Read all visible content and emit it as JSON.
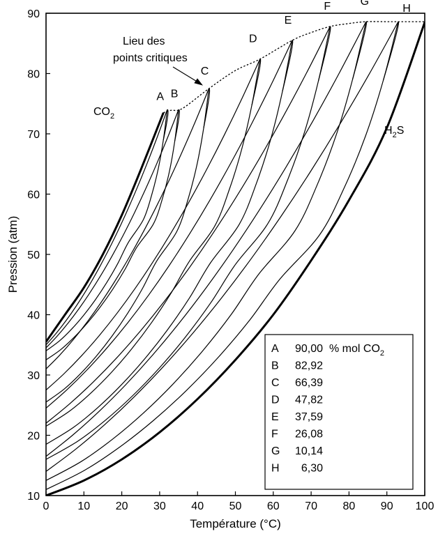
{
  "chart_data": {
    "type": "line",
    "title": "",
    "xlabel": "Température (°C)",
    "ylabel": "Pression (atm)",
    "xlim": [
      0,
      100
    ],
    "ylim": [
      10,
      90
    ],
    "x_ticks": [
      0,
      10,
      20,
      30,
      40,
      50,
      60,
      70,
      80,
      90,
      100
    ],
    "y_ticks": [
      10,
      20,
      30,
      40,
      50,
      60,
      70,
      80,
      90
    ],
    "grid": false,
    "annotations": {
      "critical_locus_line1": "Lieu des",
      "critical_locus_line2": "points critiques",
      "co2_base": "CO",
      "co2_sub": "2",
      "h2s_h": "H",
      "h2s_sub": "2",
      "h2s_s": "S"
    },
    "pure_curves": [
      {
        "name": "CO2",
        "x": [
          0,
          5,
          10,
          15,
          20,
          25,
          31
        ],
        "y": [
          35.5,
          40,
          44.5,
          50,
          56.5,
          64,
          73.5
        ]
      },
      {
        "name": "H2S",
        "x": [
          0,
          10,
          20,
          30,
          40,
          50,
          60,
          70,
          80,
          90,
          100
        ],
        "y": [
          10,
          12.5,
          16,
          20.5,
          26,
          32.5,
          40,
          49,
          59,
          71,
          88.5
        ]
      }
    ],
    "critical_locus": {
      "x": [
        31,
        33,
        36,
        43,
        50,
        56.5,
        65,
        70,
        75,
        80,
        84.5,
        90,
        93,
        100
      ],
      "y": [
        73.5,
        73.9,
        74.2,
        77.5,
        80.5,
        82.4,
        85.5,
        86.8,
        87.8,
        88.3,
        88.6,
        88.6,
        88.6,
        88.6
      ]
    },
    "envelopes": [
      {
        "label": "A",
        "critical_point": [
          32,
          74
        ],
        "bubble_start_pressure": 35,
        "dew_start_pressure": 34
      },
      {
        "label": "B",
        "critical_point": [
          35,
          74
        ],
        "bubble_start_pressure": 34.5,
        "dew_start_pressure": 32.5
      },
      {
        "label": "C",
        "critical_point": [
          43,
          77.5
        ],
        "bubble_start_pressure": 31,
        "dew_start_pressure": 25.5
      },
      {
        "label": "D",
        "critical_point": [
          56.5,
          82.4
        ],
        "bubble_start_pressure": 27.5,
        "dew_start_pressure": 21.5
      },
      {
        "label": "E",
        "critical_point": [
          65,
          85.5
        ],
        "bubble_start_pressure": 24.5,
        "dew_start_pressure": 18.5
      },
      {
        "label": "F",
        "critical_point": [
          75,
          87.8
        ],
        "bubble_start_pressure": 22,
        "dew_start_pressure": 16
      },
      {
        "label": "G",
        "critical_point": [
          84.5,
          88.6
        ],
        "bubble_start_pressure": 16.5,
        "dew_start_pressure": 12.5
      },
      {
        "label": "H",
        "critical_point": [
          93,
          88.6
        ],
        "bubble_start_pressure": 14,
        "dew_start_pressure": 11
      }
    ],
    "legend": {
      "placement": "bottom-right",
      "unit_base": "% mol CO",
      "unit_sub": "2",
      "entries": [
        {
          "letter": "A",
          "value": "90,00"
        },
        {
          "letter": "B",
          "value": "82,92"
        },
        {
          "letter": "C",
          "value": "66,39"
        },
        {
          "letter": "D",
          "value": "47,82"
        },
        {
          "letter": "E",
          "value": "37,59"
        },
        {
          "letter": "F",
          "value": "26,08"
        },
        {
          "letter": "G",
          "value": "10,14"
        },
        {
          "letter": "H",
          "value": "6,30"
        }
      ]
    }
  }
}
